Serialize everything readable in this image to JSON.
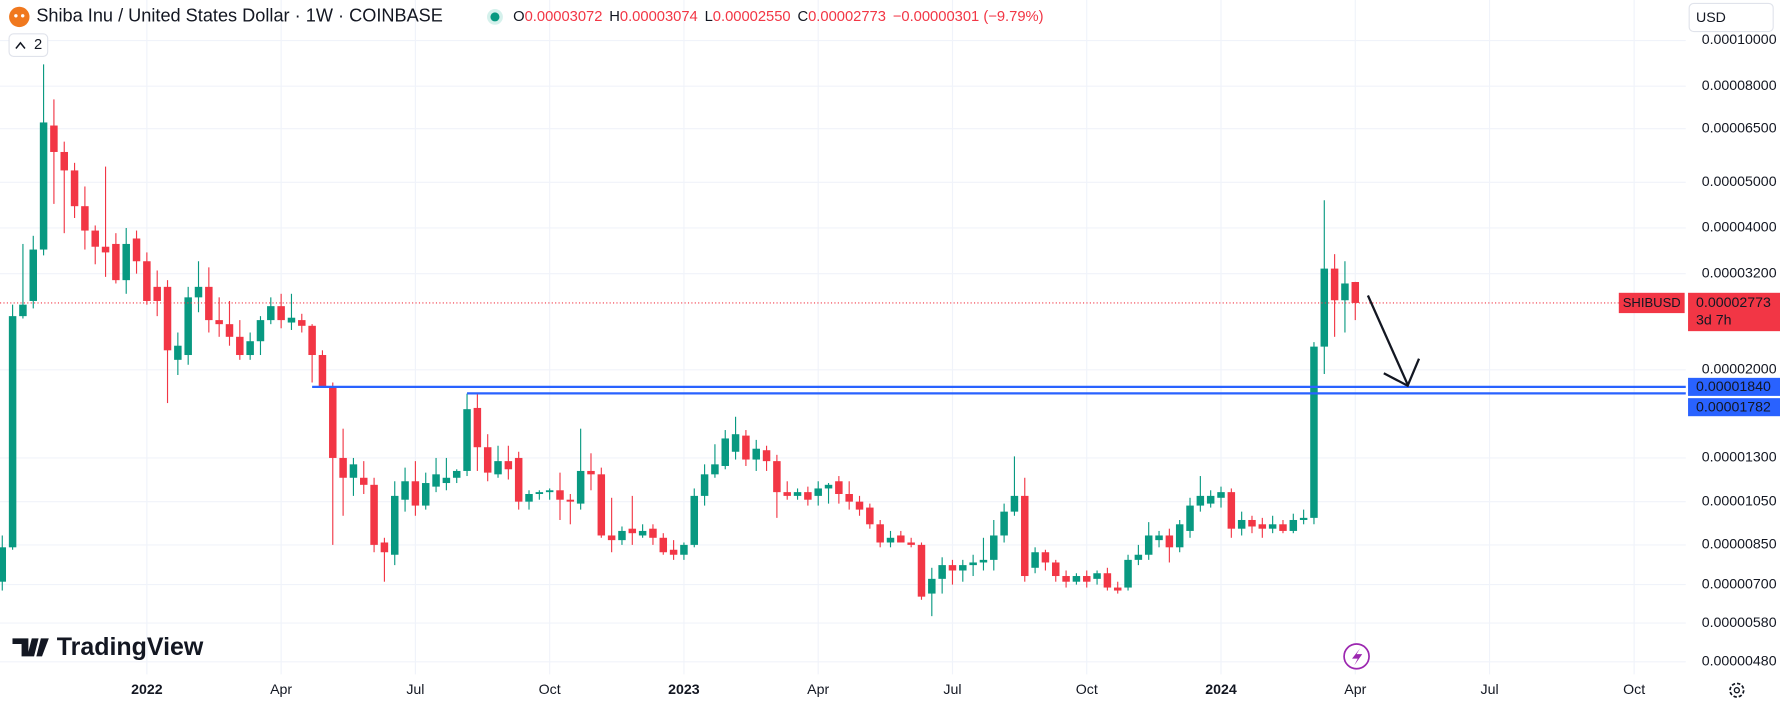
{
  "header": {
    "title": "Shiba Inu / United States Dollar · 1W · COINBASE",
    "indicator_count": "2",
    "currency": "USD",
    "watermark": "TradingView",
    "ohlc": [
      {
        "key": "O",
        "value": "0.00003072"
      },
      {
        "key": "H",
        "value": "0.00003074"
      },
      {
        "key": "L",
        "value": "0.00002550"
      },
      {
        "key": "C",
        "value": "0.00002773"
      }
    ],
    "change": "−0.00000301 (−9.79%)"
  },
  "chart_data": {
    "type": "candlestick",
    "log_scale": true,
    "grid": true,
    "up_color": "#089981",
    "down_color": "#f23645",
    "categories": [
      null,
      null,
      null,
      null,
      null,
      null,
      null,
      null,
      null,
      null,
      null,
      null,
      null,
      null,
      "2022",
      null,
      null,
      null,
      null,
      null,
      null,
      null,
      null,
      null,
      null,
      null,
      null,
      "Apr",
      null,
      null,
      null,
      null,
      null,
      null,
      null,
      null,
      null,
      null,
      null,
      null,
      "Jul",
      null,
      null,
      null,
      null,
      null,
      null,
      null,
      null,
      null,
      null,
      null,
      null,
      "Oct",
      null,
      null,
      null,
      null,
      null,
      null,
      null,
      null,
      null,
      null,
      null,
      null,
      "2023",
      null,
      null,
      null,
      null,
      null,
      null,
      null,
      null,
      null,
      null,
      null,
      null,
      "Apr",
      null,
      null,
      null,
      null,
      null,
      null,
      null,
      null,
      null,
      null,
      null,
      null,
      "Jul",
      null,
      null,
      null,
      null,
      null,
      null,
      null,
      null,
      null,
      null,
      null,
      null,
      "Oct",
      null,
      null,
      null,
      null,
      null,
      null,
      null,
      null,
      null,
      null,
      null,
      null,
      "2024",
      null,
      null,
      null,
      null,
      null,
      null,
      null,
      null,
      null,
      null,
      null,
      null,
      "Apr",
      null,
      null,
      null,
      null,
      null,
      null,
      null,
      null,
      null,
      null,
      null,
      null,
      "Jul",
      null,
      null,
      null,
      null,
      null,
      null,
      null,
      null,
      null,
      null,
      null,
      null,
      null,
      "Oct",
      null,
      null,
      null,
      null
    ],
    "open": [
      7.1e-06,
      8.4e-06,
      2.6e-05,
      2.8e-05,
      3.6e-05,
      6.6e-05,
      5.8e-05,
      5.3e-05,
      4.45e-05,
      3.95e-05,
      3.65e-05,
      3.7e-05,
      3.1e-05,
      3.8e-05,
      3.4e-05,
      3e-05,
      3e-05,
      2.1e-05,
      2.15e-05,
      2.85e-05,
      3e-05,
      2.55e-05,
      2.5e-05,
      2.35e-05,
      2.15e-05,
      2.3e-05,
      2.55e-05,
      2.73e-05,
      2.52e-05,
      2.55e-05,
      2.48e-05,
      2.15e-05,
      1.84e-05,
      1.3e-05,
      1.18e-05,
      1.18e-05,
      1.14e-05,
      8.6e-06,
      8.1e-06,
      1.06e-05,
      1.16e-05,
      1.03e-05,
      1.13e-05,
      1.15e-05,
      1.18e-05,
      1.22e-05,
      1.66e-05,
      1.37e-05,
      1.2e-05,
      1.28e-05,
      1.3e-05,
      1.05e-05,
      1.09e-05,
      1.1e-05,
      1.11e-05,
      1.06e-05,
      1.04e-05,
      1.22e-05,
      1.2e-05,
      8.9e-06,
      8.7e-06,
      9.2e-06,
      8.9e-06,
      9.2e-06,
      8.8e-06,
      8.3e-06,
      8.1e-06,
      8.5e-06,
      1.08e-05,
      1.2e-05,
      1.25e-05,
      1.34e-05,
      1.45e-05,
      1.29e-05,
      1.35e-05,
      1.28e-05,
      1.1e-05,
      1.08e-05,
      1.1e-05,
      1.08e-05,
      1.12e-05,
      1.16e-05,
      1.09e-05,
      1.05e-05,
      1.02e-05,
      9.4e-06,
      8.6e-06,
      8.9e-06,
      8.6e-06,
      8.5e-06,
      6.7e-06,
      7.2e-06,
      7.7e-06,
      7.5e-06,
      7.7e-06,
      7.8e-06,
      7.9e-06,
      8.9e-06,
      1e-05,
      1.08e-05,
      7.6e-06,
      8.2e-06,
      7.8e-06,
      7.3e-06,
      7.1e-06,
      7.3e-06,
      7.2e-06,
      7.4e-06,
      6.9e-06,
      6.9e-06,
      7.9e-06,
      8.1e-06,
      8.7e-06,
      8.9e-06,
      8.4e-06,
      9.1e-06,
      1.03e-05,
      1.04e-05,
      1.07e-05,
      1.1e-05,
      9.2e-06,
      9.6e-06,
      9.4e-06,
      9.2e-06,
      9.4e-06,
      9.1e-06,
      9.6e-06,
      9.7e-06,
      2.24e-05,
      3.28e-05,
      2.81e-05,
      3.072e-05,
      null,
      null,
      null,
      null,
      null,
      null,
      null,
      null,
      null,
      null,
      null,
      null,
      null,
      null,
      null,
      null,
      null,
      null,
      null,
      null,
      null,
      null,
      null,
      null,
      null,
      null,
      null,
      null,
      null,
      null,
      null
    ],
    "high": [
      8.9e-06,
      2.75e-05,
      3.7e-05,
      3.85e-05,
      8.9e-05,
      7.5e-05,
      6.1e-05,
      5.5e-05,
      4.9e-05,
      4.05e-05,
      5.4e-05,
      3.9e-05,
      4e-05,
      3.95e-05,
      3.55e-05,
      3.25e-05,
      3.1e-05,
      2.4e-05,
      3e-05,
      3.4e-05,
      3.3e-05,
      2.85e-05,
      2.8e-05,
      2.55e-05,
      2.4e-05,
      2.6e-05,
      2.85e-05,
      2.9e-05,
      2.9e-05,
      2.63e-05,
      2.5e-05,
      2.2e-05,
      1.88e-05,
      1.5e-05,
      1.3e-05,
      1.28e-05,
      1.18e-05,
      8.8e-06,
      1.16e-05,
      1.24e-05,
      1.28e-05,
      1.21e-05,
      1.3e-05,
      1.3e-05,
      1.23e-05,
      1.78e-05,
      1.78e-05,
      1.46e-05,
      1.38e-05,
      1.38e-05,
      1.34e-05,
      1.11e-05,
      1.11e-05,
      1.12e-05,
      1.21e-05,
      1.09e-05,
      1.5e-05,
      1.33e-05,
      1.24e-05,
      1.07e-05,
      9.3e-06,
      1.08e-05,
      9.4e-06,
      9.4e-06,
      9e-06,
      8.7e-06,
      8.6e-06,
      1.12e-05,
      1.26e-05,
      1.39e-05,
      1.49e-05,
      1.59e-05,
      1.49e-05,
      1.42e-05,
      1.38e-05,
      1.32e-05,
      1.16e-05,
      1.12e-05,
      1.13e-05,
      1.16e-05,
      1.15e-05,
      1.19e-05,
      1.16e-05,
      1.08e-05,
      1.04e-05,
      9.6e-06,
      9.1e-06,
      9.1e-06,
      8.8e-06,
      8.6e-06,
      7.6e-06,
      8e-06,
      7.9e-06,
      7.9e-06,
      8.1e-06,
      8.8e-06,
      9.6e-06,
      1.04e-05,
      1.31e-05,
      1.18e-05,
      8.4e-06,
      8.3e-06,
      7.9e-06,
      7.5e-06,
      7.4e-06,
      7.5e-06,
      7.5e-06,
      7.6e-06,
      7.1e-06,
      8.1e-06,
      8.5e-06,
      9.5e-06,
      9.1e-06,
      9.2e-06,
      9.6e-06,
      1.07e-05,
      1.19e-05,
      1.11e-05,
      1.13e-05,
      1.12e-05,
      1e-05,
      9.8e-06,
      9.7e-06,
      9.8e-06,
      9.6e-06,
      9.9e-06,
      1.01e-05,
      2.29e-05,
      4.58e-05,
      3.52e-05,
      3.4e-05,
      3.074e-05,
      null,
      null,
      null,
      null,
      null,
      null,
      null,
      null,
      null,
      null,
      null,
      null,
      null,
      null,
      null,
      null,
      null,
      null,
      null,
      null,
      null,
      null,
      null,
      null,
      null,
      null,
      null,
      null,
      null,
      null,
      null
    ],
    "low": [
      6.8e-06,
      8.3e-06,
      2.57e-05,
      2.7e-05,
      3.5e-05,
      4.5e-05,
      3.9e-05,
      4.2e-05,
      3.6e-05,
      3.35e-05,
      3.15e-05,
      3.05e-05,
      2.9e-05,
      3.2e-05,
      2.75e-05,
      2.6e-05,
      1.7e-05,
      1.95e-05,
      2.05e-05,
      2.65e-05,
      2.4e-05,
      2.35e-05,
      2.25e-05,
      2.1e-05,
      2.1e-05,
      2.15e-05,
      2.5e-05,
      2.45e-05,
      2.43e-05,
      2.4e-05,
      1.88e-05,
      1.83e-05,
      8.5e-06,
      9.8e-06,
      1.08e-05,
      1.09e-05,
      8.2e-06,
      7.1e-06,
      7.7e-06,
      1e-05,
      9.8e-06,
      1.01e-05,
      1.1e-05,
      1.11e-05,
      1.15e-05,
      1.19e-05,
      1.22e-05,
      1.16e-05,
      1.18e-05,
      1.17e-05,
      1.01e-05,
      1.01e-05,
      1.06e-05,
      1.06e-05,
      9.6e-06,
      9.4e-06,
      1.01e-05,
      1.11e-05,
      8.8e-06,
      8.2e-06,
      8.5e-06,
      8.5e-06,
      8.8e-06,
      8.5e-06,
      8.1e-06,
      7.9e-06,
      7.9e-06,
      8.4e-06,
      1.03e-05,
      1.18e-05,
      1.23e-05,
      1.29e-05,
      1.25e-05,
      1.22e-05,
      1.22e-05,
      9.7e-06,
      1.06e-05,
      1.06e-05,
      1.03e-05,
      1.03e-05,
      1.04e-05,
      1.04e-05,
      1.01e-05,
      9.8e-06,
      9.2e-06,
      8.4e-06,
      8.4e-06,
      8.6e-06,
      8.4e-06,
      6.5e-06,
      6e-06,
      6.7e-06,
      7e-06,
      7.1e-06,
      7.3e-06,
      7.5e-06,
      7.5e-06,
      8.6e-06,
      9.8e-06,
      7.1e-06,
      7.4e-06,
      7.5e-06,
      7.1e-06,
      6.9e-06,
      7e-06,
      6.9e-06,
      7e-06,
      6.8e-06,
      6.7e-06,
      6.8e-06,
      7.7e-06,
      7.9e-06,
      8.4e-06,
      7.8e-06,
      8.2e-06,
      8.8e-06,
      1e-05,
      1.02e-05,
      1.02e-05,
      8.8e-06,
      8.9e-06,
      9e-06,
      8.8e-06,
      9e-06,
      9e-06,
      9e-06,
      9.4e-06,
      9.4e-06,
      1.96e-05,
      2.35e-05,
      2.4e-05,
      2.55e-05,
      null,
      null,
      null,
      null,
      null,
      null,
      null,
      null,
      null,
      null,
      null,
      null,
      null,
      null,
      null,
      null,
      null,
      null,
      null,
      null,
      null,
      null,
      null,
      null,
      null,
      null,
      null,
      null,
      null,
      null,
      null
    ],
    "close": [
      8.4e-06,
      2.6e-05,
      2.75e-05,
      3.6e-05,
      6.7e-05,
      5.8e-05,
      5.3e-05,
      4.45e-05,
      3.95e-05,
      3.65e-05,
      3.55e-05,
      3.1e-05,
      3.7e-05,
      3.4e-05,
      2.8e-05,
      2.8e-05,
      2.2e-05,
      2.25e-05,
      2.85e-05,
      3e-05,
      2.55e-05,
      2.5e-05,
      2.35e-05,
      2.15e-05,
      2.3e-05,
      2.55e-05,
      2.73e-05,
      2.55e-05,
      2.58e-05,
      2.48e-05,
      2.15e-05,
      1.84e-05,
      1.3e-05,
      1.18e-05,
      1.26e-05,
      1.14e-05,
      8.5e-06,
      8.2e-06,
      1.08e-05,
      1.16e-05,
      1.03e-05,
      1.15e-05,
      1.2e-05,
      1.18e-05,
      1.22e-05,
      1.65e-05,
      1.37e-05,
      1.21e-05,
      1.28e-05,
      1.23e-05,
      1.05e-05,
      1.09e-05,
      1.1e-05,
      1.11e-05,
      1.06e-05,
      1.05e-05,
      1.22e-05,
      1.2e-05,
      8.9e-06,
      8.7e-06,
      9.1e-06,
      9e-06,
      9.1e-06,
      8.8e-06,
      8.2e-06,
      8.1e-06,
      8.5e-06,
      1.08e-05,
      1.2e-05,
      1.26e-05,
      1.43e-05,
      1.46e-05,
      1.29e-05,
      1.36e-05,
      1.28e-05,
      1.1e-05,
      1.08e-05,
      1.1e-05,
      1.06e-05,
      1.12e-05,
      1.14e-05,
      1.09e-05,
      1.05e-05,
      1.01e-05,
      9.4e-06,
      8.6e-06,
      8.8e-06,
      8.6e-06,
      8.5e-06,
      6.6e-06,
      7.2e-06,
      7.7e-06,
      7.5e-06,
      7.7e-06,
      7.8e-06,
      7.9e-06,
      8.9e-06,
      1e-05,
      1.08e-05,
      7.3e-06,
      8.2e-06,
      7.8e-06,
      7.3e-06,
      7.1e-06,
      7.3e-06,
      7.1e-06,
      7.4e-06,
      6.9e-06,
      6.8e-06,
      7.9e-06,
      8.1e-06,
      8.9e-06,
      8.9e-06,
      8.4e-06,
      9.4e-06,
      1.03e-05,
      1.08e-05,
      1.08e-05,
      1.1e-05,
      9.2e-06,
      9.6e-06,
      9.3e-06,
      9.2e-06,
      9.4e-06,
      9.1e-06,
      9.6e-06,
      9.7e-06,
      2.24e-05,
      3.28e-05,
      2.81e-05,
      3.05e-05,
      2.773e-05,
      null,
      null,
      null,
      null,
      null,
      null,
      null,
      null,
      null,
      null,
      null,
      null,
      null,
      null,
      null,
      null,
      null,
      null,
      null,
      null,
      null,
      null,
      null,
      null,
      null,
      null,
      null,
      null,
      null,
      null,
      null
    ],
    "ylim": [
      4.513e-06,
      0.0001219
    ],
    "yticks": [
      {
        "value": 0.0001,
        "label": "0.00010000"
      },
      {
        "value": 8e-05,
        "label": "0.00008000"
      },
      {
        "value": 6.5e-05,
        "label": "0.00006500"
      },
      {
        "value": 5e-05,
        "label": "0.00005000"
      },
      {
        "value": 4e-05,
        "label": "0.00004000"
      },
      {
        "value": 3.2e-05,
        "label": "0.00003200"
      },
      {
        "value": 2e-05,
        "label": "0.00002000"
      },
      {
        "value": 1.3e-05,
        "label": "0.00001300"
      },
      {
        "value": 1.05e-05,
        "label": "0.00001050"
      },
      {
        "value": 8.5e-06,
        "label": "0.00000850"
      },
      {
        "value": 7e-06,
        "label": "0.00000700"
      },
      {
        "value": 5.8e-06,
        "label": "0.00000580"
      },
      {
        "value": 4.8e-06,
        "label": "0.00000480"
      }
    ],
    "price_line": {
      "value": 2.773e-05,
      "label": "0.00002773",
      "symbol": "SHIBUSD",
      "countdown": "3d 7h",
      "color": "#f23645"
    },
    "hlines": [
      {
        "value": 1.84e-05,
        "label": "0.00001840",
        "color": "#2962ff"
      },
      {
        "value": 1.782e-05,
        "label": "0.00001782",
        "color": "#2962ff"
      }
    ]
  }
}
